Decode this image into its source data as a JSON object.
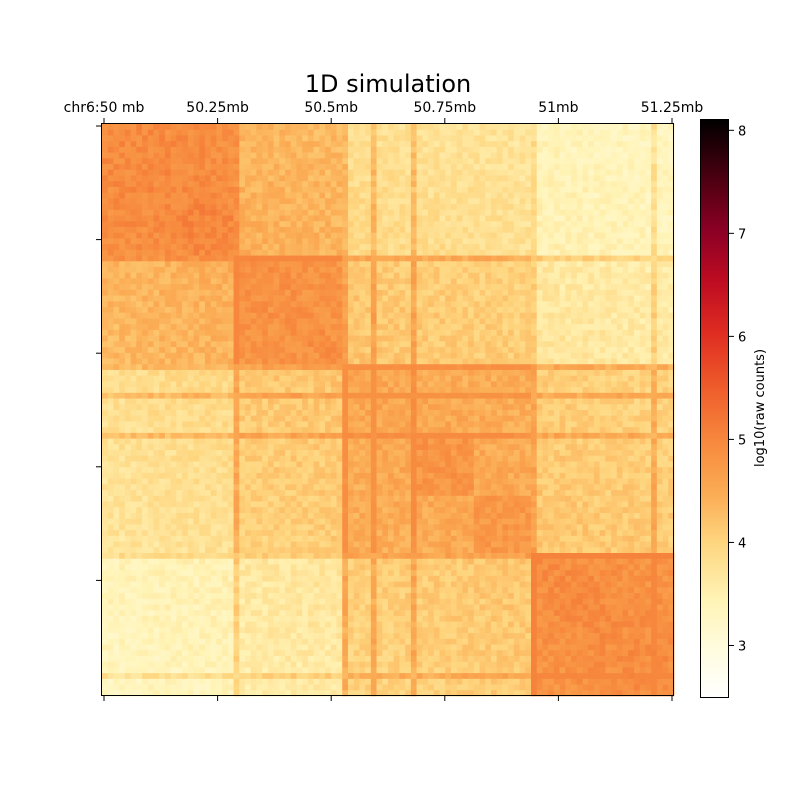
{
  "chart_data": {
    "type": "heatmap",
    "title": "1D simulation",
    "x_tick_labels": [
      "chr6:50 mb",
      "50.25mb",
      "50.5mb",
      "50.75mb",
      "51mb",
      "51.25mb"
    ],
    "genomic_range_mb": [
      50.0,
      51.25
    ],
    "bins": 100,
    "colorbar": {
      "label": "log10(raw counts)",
      "min": 2.5,
      "max": 8.1,
      "ticks": [
        "3",
        "4",
        "5",
        "6",
        "7",
        "8"
      ],
      "colormap": "afmhot_r"
    },
    "background": 3.6,
    "domains": [
      {
        "start_bin": 0,
        "end_bin": 23,
        "value": 4.9
      },
      {
        "start_bin": 14,
        "end_bin": 23,
        "value": 4.95
      },
      {
        "start_bin": 23,
        "end_bin": 42,
        "value": 4.8
      },
      {
        "start_bin": 42,
        "end_bin": 75,
        "value": 4.5
      },
      {
        "start_bin": 54,
        "end_bin": 65,
        "value": 4.75
      },
      {
        "start_bin": 65,
        "end_bin": 75,
        "value": 4.7
      },
      {
        "start_bin": 75,
        "end_bin": 100,
        "value": 4.85
      }
    ],
    "boundary_stripes": [
      {
        "bin": 23,
        "value": 5.0
      },
      {
        "bin": 42,
        "value": 4.9
      },
      {
        "bin": 47,
        "value": 4.85
      },
      {
        "bin": 54,
        "value": 4.95
      },
      {
        "bin": 75,
        "value": 5.05
      },
      {
        "bin": 96,
        "value": 5.0
      }
    ],
    "inter_domain_values": [
      {
        "a": 0,
        "b": 1,
        "value": 4.4
      },
      {
        "a": 1,
        "b": 2,
        "value": 4.15
      },
      {
        "a": 0,
        "b": 2,
        "value": 3.95
      },
      {
        "a": 2,
        "b": 3,
        "value": 4.15
      },
      {
        "a": 1,
        "b": 3,
        "value": 3.8
      },
      {
        "a": 0,
        "b": 3,
        "value": 3.65
      }
    ]
  },
  "colors": {
    "text": "#000000",
    "axis": "#000000",
    "background": "#ffffff"
  }
}
